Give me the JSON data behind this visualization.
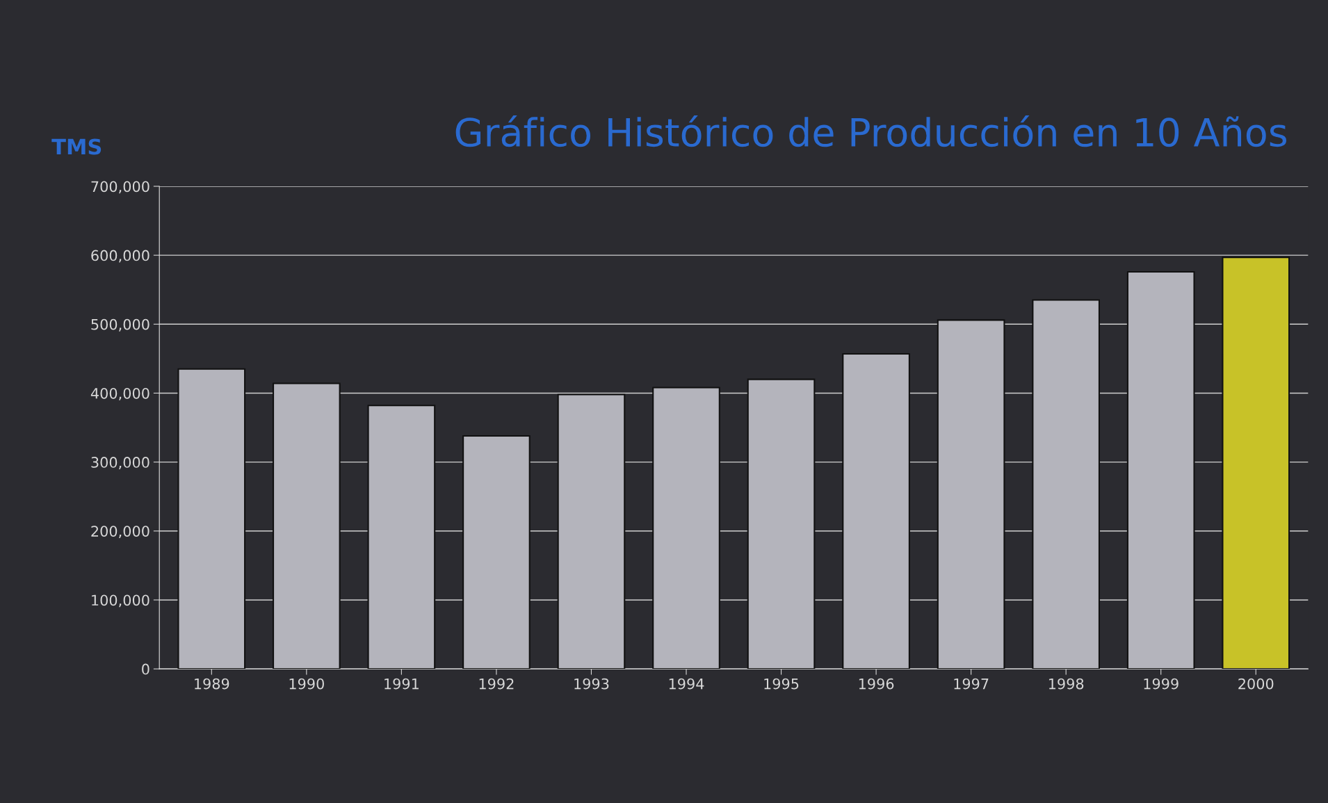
{
  "chart_data": {
    "type": "bar",
    "title": "Gráfico Histórico de Producción en 10 Años",
    "ylabel": "TMS",
    "categories": [
      "1989",
      "1990",
      "1991",
      "1992",
      "1993",
      "1994",
      "1995",
      "1996",
      "1997",
      "1998",
      "1999",
      "2000"
    ],
    "values": [
      435000,
      414000,
      382000,
      338000,
      398000,
      408000,
      420000,
      457000,
      506000,
      535000,
      576000,
      597000
    ],
    "colors": [
      "#b4b4bc",
      "#b4b4bc",
      "#b4b4bc",
      "#b4b4bc",
      "#b4b4bc",
      "#b4b4bc",
      "#b4b4bc",
      "#b4b4bc",
      "#b4b4bc",
      "#b4b4bc",
      "#b4b4bc",
      "#c8c228"
    ],
    "ylim": [
      0,
      700000
    ],
    "yticks": [
      0,
      {
        "value": 100000,
        "label": "100,000"
      },
      {
        "value": 200000,
        "label": "200,000"
      },
      {
        "value": 300000,
        "label": "300,000"
      },
      {
        "value": 400000,
        "label": "400,000"
      },
      {
        "value": 500000,
        "label": "500,000"
      },
      {
        "value": 600000,
        "label": "600,000"
      },
      {
        "value": 700000,
        "label": "700,000"
      }
    ],
    "grid": "y"
  }
}
